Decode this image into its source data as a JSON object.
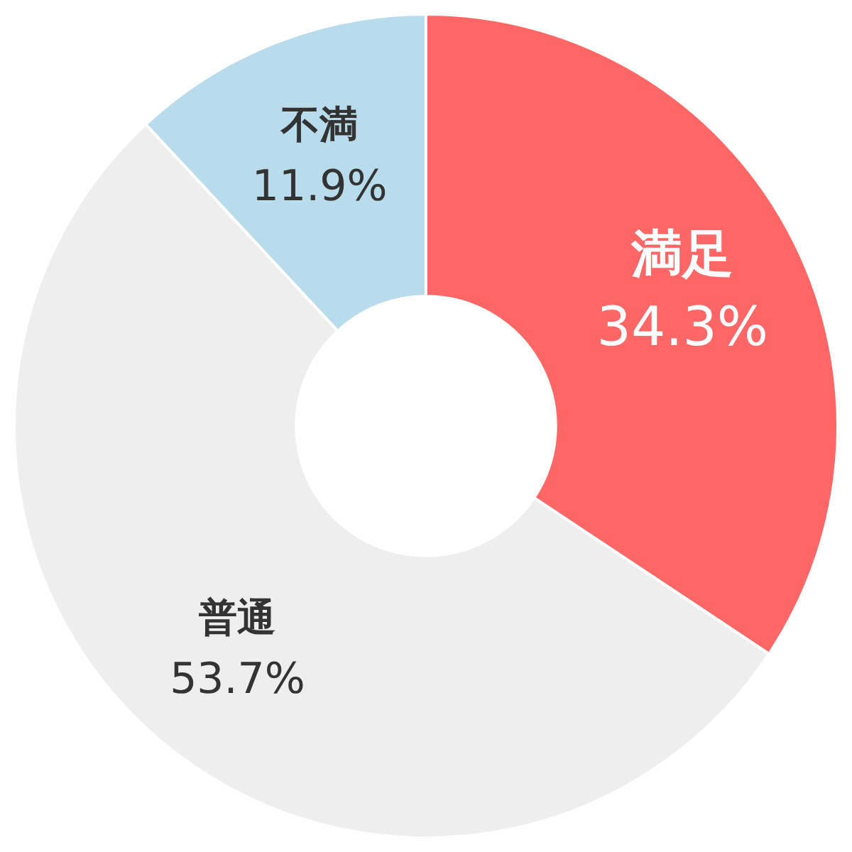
{
  "chart_data": {
    "type": "donut",
    "categories": [
      "満足",
      "普通",
      "不満"
    ],
    "values": [
      34.3,
      53.7,
      11.9
    ],
    "colors": [
      "#ff6666",
      "#eeeeee",
      "#b8dcec"
    ],
    "value_labels": [
      "34.3%",
      "53.7%",
      "11.9%"
    ]
  }
}
